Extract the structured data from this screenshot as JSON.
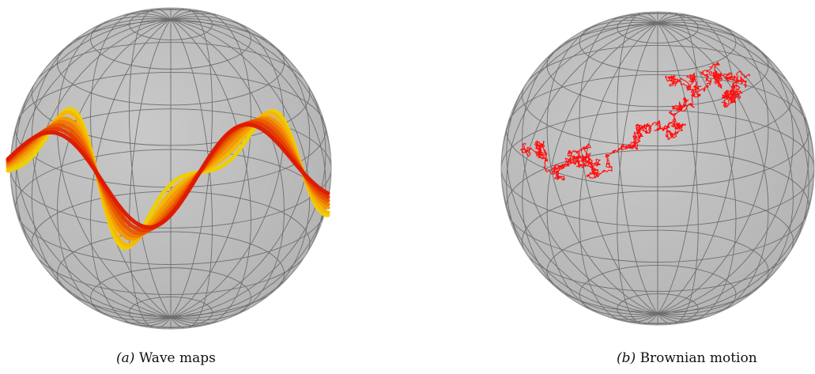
{
  "figure": {
    "panels": [
      {
        "label": "(a)",
        "caption": "Wave maps",
        "curve_colors": [
          "#f0d000",
          "#f6b800",
          "#f59a00",
          "#f07a00",
          "#ea5800",
          "#e33a00",
          "#dd1a00"
        ]
      },
      {
        "label": "(b)",
        "caption": "Brownian motion",
        "path_color": "#ff1010"
      }
    ],
    "sphere_fill": "#b4b4b4",
    "grid_color": "#6e6e6e"
  }
}
